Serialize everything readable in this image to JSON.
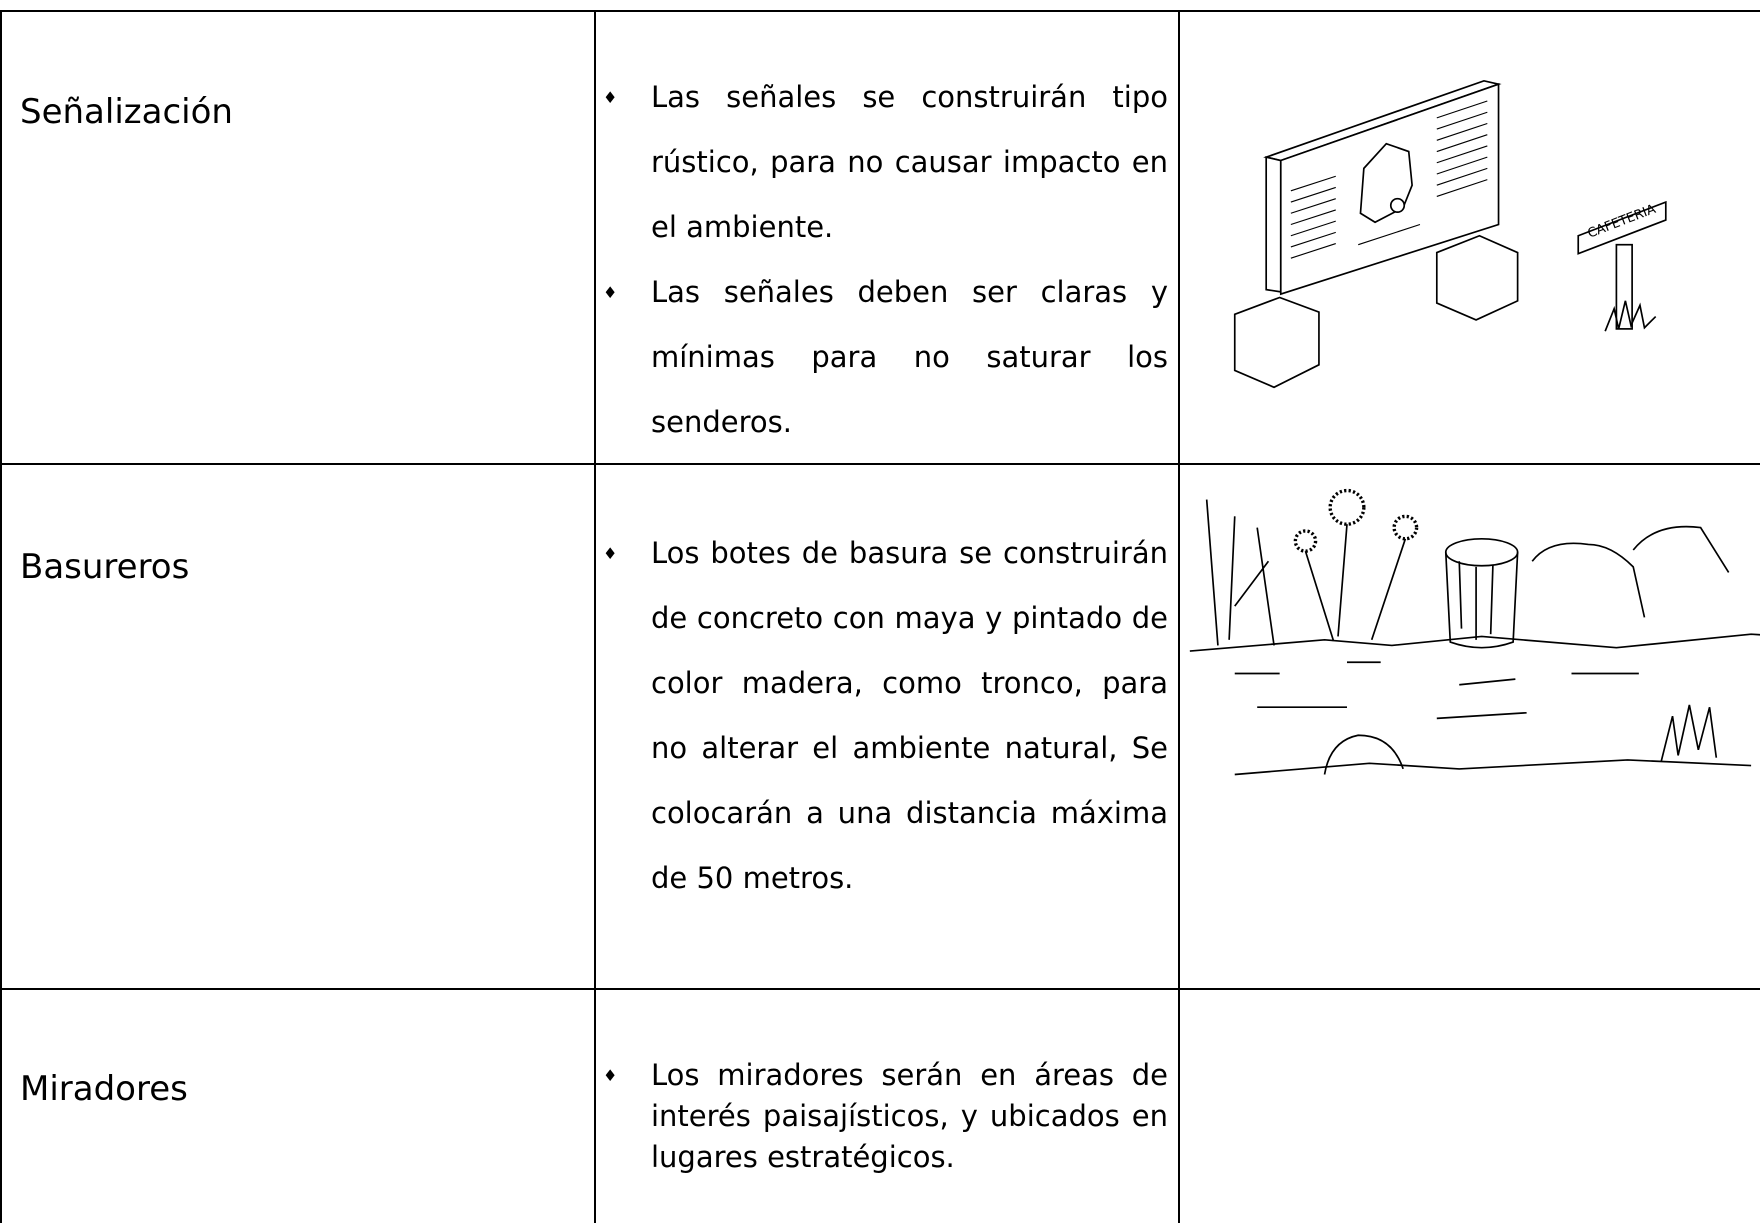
{
  "rows": [
    {
      "label": "Señalización",
      "bullets": [
        "Las señales se construirán tipo rústico, para no causar impacto en el ambiente.",
        "Las señales deben ser claras y mínimas para no saturar los senderos."
      ],
      "image_text": "CAFETERIA"
    },
    {
      "label": "Basureros",
      "bullets": [
        "Los botes de basura se construirán de concreto con maya y pintado de color madera, como tronco, para no alterar el ambiente natural, Se colocarán a una distancia máxima de 50 metros."
      ]
    },
    {
      "label": "Miradores",
      "bullets": [
        "Los miradores serán en áreas de interés paisajísticos, y ubicados en lugares estratégicos."
      ]
    }
  ]
}
